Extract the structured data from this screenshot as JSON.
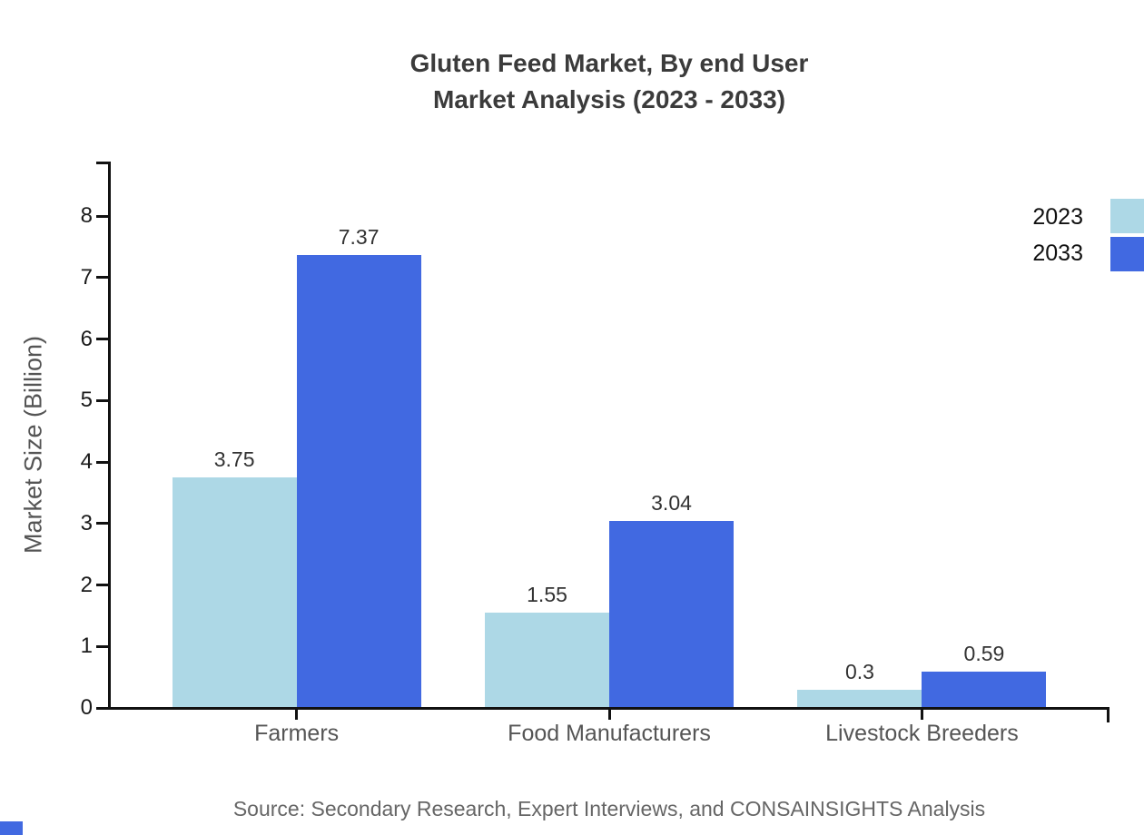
{
  "page": {
    "background": "#ffffff"
  },
  "chart_data": {
    "type": "bar",
    "title": "Gluten Feed Market, By end User Market Analysis (2023 - 2033)",
    "title_lines": [
      "Gluten Feed Market, By end User",
      "Market Analysis (2023 - 2033)"
    ],
    "ylabel": "Market Size (Billion)",
    "xlabel": "",
    "categories": [
      "Farmers",
      "Food Manufacturers",
      "Livestock Breeders"
    ],
    "series": [
      {
        "name": "2023",
        "color": "#ADD8E6",
        "values": [
          3.75,
          1.55,
          0.3
        ]
      },
      {
        "name": "2033",
        "color": "#4169E1",
        "values": [
          7.37,
          3.04,
          0.59
        ]
      }
    ],
    "value_labels": [
      [
        "3.75",
        "1.55",
        "0.3"
      ],
      [
        "7.37",
        "3.04",
        "0.59"
      ]
    ],
    "ylim": [
      0,
      8.9
    ],
    "yticks": [
      0,
      1,
      2,
      3,
      4,
      5,
      6,
      7,
      8
    ],
    "grid": false,
    "legend_position": "top-right",
    "source_note": "Source: Secondary Research, Expert Interviews, and CONSAINSIGHTS Analysis"
  },
  "colors": {
    "axis": "#111111",
    "title_text": "#3b3b3b",
    "tick_text": "#1a1a1a",
    "category_text": "#555555",
    "value_label_text": "#333333",
    "axis_title_text": "#555555",
    "legend_text": "#111111",
    "source_text": "#666666",
    "series_2023": "#ADD8E6",
    "series_2033": "#4169E1",
    "brand_mark": "#4169E1"
  }
}
